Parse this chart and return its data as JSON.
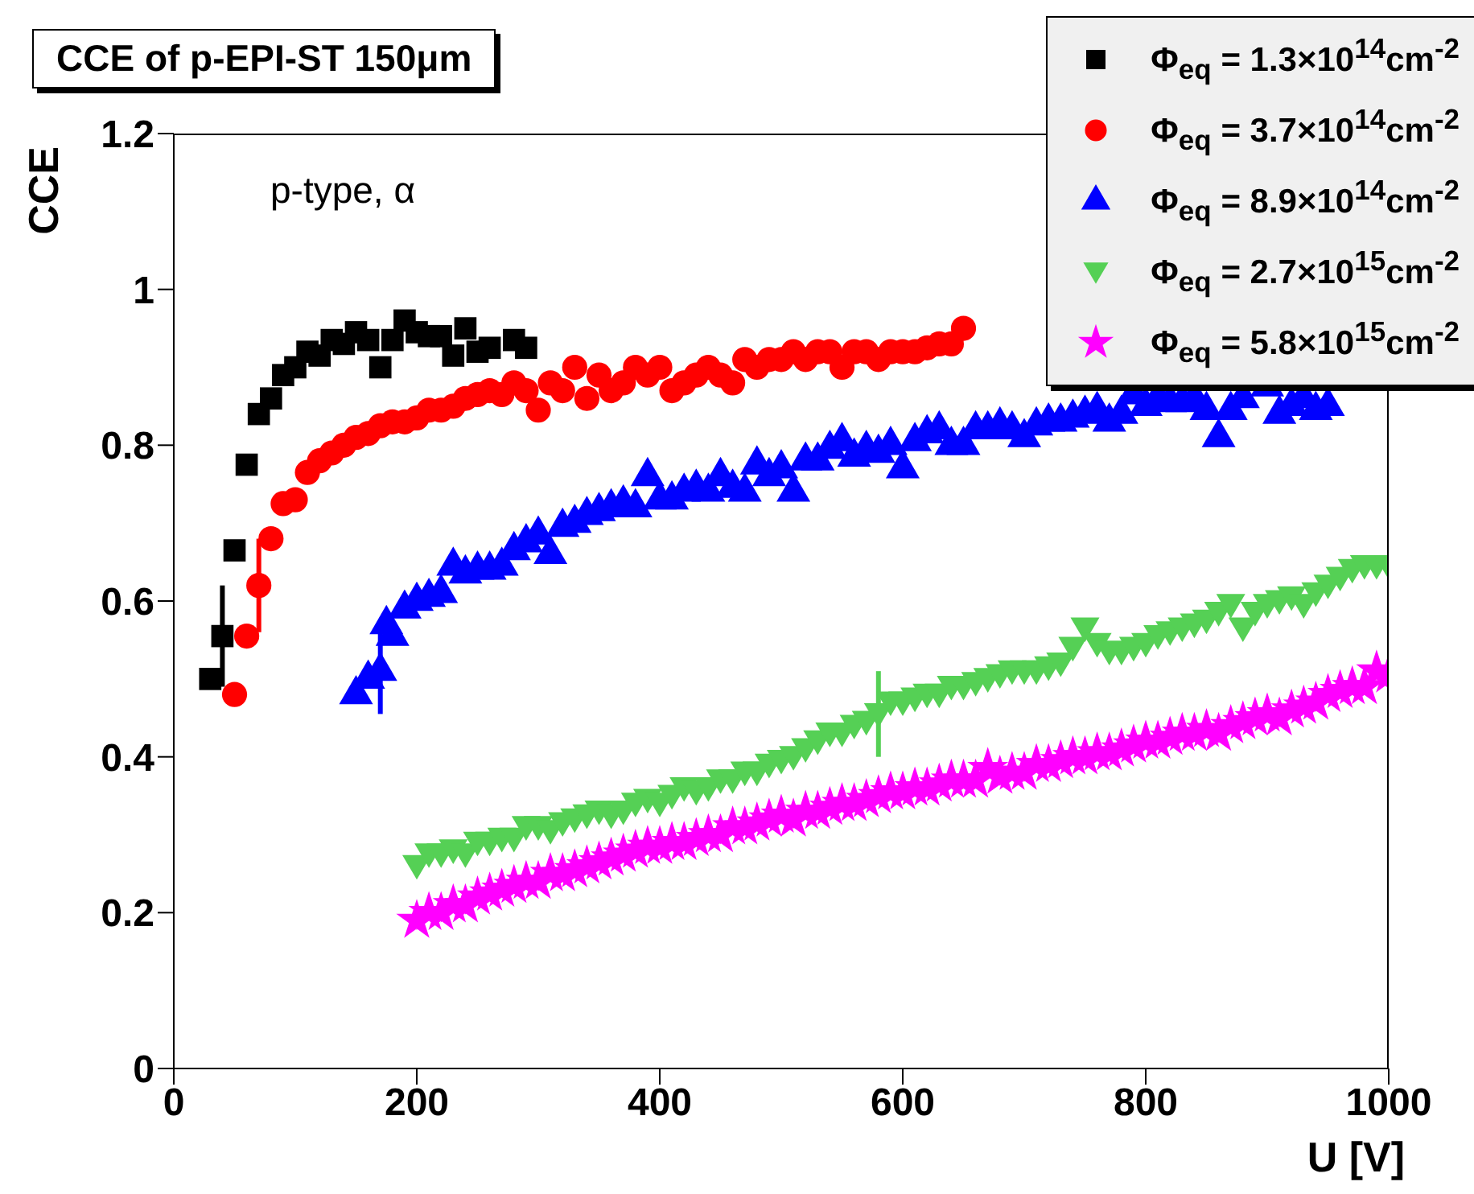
{
  "chart_data": {
    "type": "scatter",
    "title": "CCE of p-EPI-ST 150μm",
    "xlabel": "U [V]",
    "ylabel": "CCE",
    "annotations": [
      "p-type, α"
    ],
    "xlim": [
      0,
      1000
    ],
    "xticks": [
      0,
      200,
      400,
      600,
      800,
      1000
    ],
    "ylim": [
      0,
      1.2
    ],
    "yticks": [
      0,
      0.2,
      0.4,
      0.6,
      0.8,
      1,
      1.2
    ],
    "grid": false,
    "legend": "top right",
    "series": [
      {
        "name": "Φ$_{eq}$ = 1.3×10$^{14}$cm$^{-2}$",
        "color": "#000000",
        "marker": "square",
        "x": [
          30,
          40,
          50,
          60,
          70,
          80,
          90,
          100,
          110,
          120,
          130,
          140,
          150,
          160,
          170,
          180,
          190,
          200,
          210,
          220,
          230,
          240,
          250,
          260,
          280,
          290
        ],
        "values": [
          0.5,
          0.555,
          0.665,
          0.775,
          0.84,
          0.86,
          0.89,
          0.9,
          0.92,
          0.915,
          0.935,
          0.93,
          0.945,
          0.935,
          0.9,
          0.935,
          0.96,
          0.945,
          0.94,
          0.94,
          0.915,
          0.95,
          0.92,
          0.925,
          0.935,
          0.925
        ],
        "errors": [
          null,
          0.065,
          null,
          null,
          null,
          null,
          null,
          null,
          null,
          null,
          null,
          null,
          null,
          null,
          null,
          null,
          null,
          null,
          null,
          null,
          null,
          null,
          null,
          null,
          null,
          null
        ]
      },
      {
        "name": "Φ$_{eq}$ = 3.7×10$^{14}$cm$^{-2}$",
        "color": "#ff0000",
        "marker": "circle",
        "x": [
          50,
          60,
          70,
          80,
          90,
          100,
          110,
          120,
          130,
          140,
          150,
          160,
          170,
          180,
          190,
          200,
          210,
          220,
          230,
          240,
          250,
          260,
          270,
          280,
          290,
          300,
          310,
          320,
          330,
          340,
          350,
          360,
          370,
          380,
          390,
          400,
          410,
          420,
          430,
          440,
          450,
          460,
          470,
          480,
          490,
          500,
          510,
          520,
          530,
          540,
          550,
          560,
          570,
          580,
          590,
          600,
          610,
          620,
          630,
          640,
          650
        ],
        "values": [
          0.48,
          0.555,
          0.62,
          0.68,
          0.725,
          0.73,
          0.765,
          0.78,
          0.79,
          0.8,
          0.81,
          0.815,
          0.825,
          0.83,
          0.83,
          0.835,
          0.845,
          0.845,
          0.85,
          0.86,
          0.865,
          0.87,
          0.865,
          0.88,
          0.87,
          0.845,
          0.88,
          0.87,
          0.9,
          0.86,
          0.89,
          0.87,
          0.88,
          0.9,
          0.89,
          0.9,
          0.87,
          0.88,
          0.89,
          0.9,
          0.89,
          0.88,
          0.91,
          0.9,
          0.91,
          0.91,
          0.92,
          0.91,
          0.92,
          0.92,
          0.9,
          0.92,
          0.92,
          0.91,
          0.92,
          0.92,
          0.92,
          0.925,
          0.93,
          0.93,
          0.95
        ],
        "errors": [
          null,
          null,
          0.06,
          null,
          null,
          null,
          null,
          null,
          null,
          null,
          null,
          null,
          null,
          null,
          null,
          null,
          null,
          null,
          null,
          null,
          null,
          null,
          null,
          null,
          null,
          null,
          null,
          null,
          null,
          null,
          null,
          null,
          null,
          null,
          null,
          null,
          null,
          null,
          null,
          null,
          null,
          null,
          null,
          null,
          null,
          null,
          null,
          null,
          null,
          null,
          null,
          null,
          null,
          null,
          null,
          null,
          null,
          null,
          null,
          null,
          null
        ]
      },
      {
        "name": "Φ$_{eq}$ = 8.9×10$^{14}$cm$^{-2}$",
        "color": "#0000ff",
        "marker": "triangle",
        "x": [
          150,
          160,
          170,
          175,
          180,
          190,
          200,
          210,
          220,
          230,
          240,
          250,
          260,
          270,
          280,
          290,
          300,
          310,
          320,
          330,
          340,
          350,
          360,
          370,
          380,
          390,
          400,
          410,
          420,
          430,
          440,
          450,
          460,
          470,
          480,
          490,
          500,
          510,
          520,
          530,
          540,
          550,
          560,
          570,
          580,
          590,
          600,
          610,
          620,
          630,
          640,
          650,
          660,
          670,
          680,
          690,
          700,
          710,
          720,
          730,
          740,
          750,
          760,
          770,
          780,
          790,
          800,
          810,
          820,
          830,
          840,
          850,
          860,
          870,
          880,
          890,
          900,
          910,
          920,
          930,
          940,
          950
        ],
        "values": [
          0.48,
          0.5,
          0.51,
          0.57,
          0.555,
          0.59,
          0.6,
          0.605,
          0.61,
          0.645,
          0.635,
          0.64,
          0.64,
          0.645,
          0.665,
          0.675,
          0.685,
          0.66,
          0.695,
          0.7,
          0.71,
          0.715,
          0.72,
          0.725,
          0.72,
          0.76,
          0.73,
          0.73,
          0.74,
          0.745,
          0.74,
          0.76,
          0.745,
          0.74,
          0.775,
          0.76,
          0.77,
          0.74,
          0.78,
          0.78,
          0.795,
          0.805,
          0.785,
          0.795,
          0.79,
          0.8,
          0.77,
          0.805,
          0.815,
          0.82,
          0.8,
          0.8,
          0.82,
          0.82,
          0.825,
          0.82,
          0.81,
          0.825,
          0.83,
          0.83,
          0.835,
          0.84,
          0.845,
          0.83,
          0.84,
          0.865,
          0.85,
          0.86,
          0.855,
          0.855,
          0.86,
          0.845,
          0.81,
          0.845,
          0.86,
          null,
          0.875,
          0.84,
          0.85,
          0.86,
          0.845,
          0.85
        ],
        "errors": [
          null,
          null,
          0.055,
          null,
          null,
          null,
          null,
          null,
          null,
          null,
          null,
          null,
          null,
          null,
          null,
          null,
          null,
          null,
          null,
          null,
          null,
          null,
          null,
          null,
          null,
          null,
          null,
          null,
          null,
          null,
          null,
          null,
          null,
          null,
          null,
          null,
          null,
          null,
          null,
          null,
          null,
          null,
          null,
          null,
          null,
          null,
          null,
          null,
          null,
          null,
          null,
          null,
          null,
          null,
          null,
          null,
          null,
          null,
          null,
          null,
          null,
          null,
          null,
          null,
          null,
          null,
          null,
          null,
          null,
          null,
          null,
          null,
          null,
          null,
          null,
          null,
          null,
          null,
          null,
          null,
          null,
          null
        ]
      },
      {
        "name": "Φ$_{eq}$ = 2.7×10$^{15}$cm$^{-2}$",
        "color": "#55d055",
        "marker": "triangle_down",
        "x": [
          200,
          210,
          220,
          230,
          240,
          250,
          260,
          270,
          280,
          290,
          300,
          310,
          320,
          330,
          340,
          350,
          360,
          370,
          380,
          390,
          400,
          410,
          420,
          430,
          440,
          450,
          460,
          470,
          480,
          490,
          500,
          510,
          520,
          530,
          540,
          550,
          560,
          570,
          580,
          590,
          600,
          610,
          620,
          630,
          640,
          650,
          660,
          670,
          680,
          690,
          700,
          710,
          720,
          730,
          740,
          750,
          760,
          770,
          780,
          790,
          800,
          810,
          820,
          830,
          840,
          850,
          860,
          870,
          880,
          890,
          900,
          910,
          920,
          930,
          940,
          950,
          960,
          970,
          980,
          990,
          1000
        ],
        "values": [
          0.26,
          0.275,
          0.275,
          0.28,
          0.275,
          0.29,
          0.29,
          0.295,
          0.295,
          0.31,
          0.31,
          0.305,
          0.315,
          0.32,
          0.325,
          0.33,
          0.325,
          0.33,
          0.34,
          0.345,
          0.34,
          0.35,
          0.36,
          0.355,
          0.36,
          0.37,
          0.37,
          0.38,
          0.38,
          0.39,
          0.395,
          0.4,
          0.41,
          0.42,
          0.43,
          0.43,
          0.44,
          0.445,
          0.455,
          0.47,
          0.47,
          0.475,
          0.48,
          0.48,
          0.49,
          0.49,
          0.495,
          0.5,
          0.505,
          0.51,
          0.51,
          0.51,
          0.515,
          0.52,
          0.54,
          0.565,
          0.545,
          0.535,
          0.535,
          0.54,
          0.545,
          0.555,
          0.56,
          0.565,
          0.57,
          0.575,
          0.585,
          0.595,
          0.565,
          0.585,
          0.595,
          0.6,
          0.605,
          0.595,
          0.61,
          0.62,
          0.63,
          0.64,
          0.645,
          0.645,
          0.645
        ],
        "errors": [
          null,
          null,
          null,
          null,
          null,
          null,
          null,
          null,
          null,
          null,
          null,
          null,
          null,
          null,
          null,
          null,
          null,
          null,
          null,
          null,
          null,
          null,
          null,
          null,
          null,
          null,
          null,
          null,
          null,
          null,
          null,
          null,
          null,
          null,
          null,
          null,
          null,
          null,
          0.055,
          null,
          null,
          null,
          null,
          null,
          null,
          null,
          null,
          null,
          null,
          null,
          null,
          null,
          null,
          null,
          null,
          null,
          null,
          null,
          null,
          null,
          null,
          null,
          null,
          null,
          null,
          null,
          null,
          null,
          null,
          null,
          null,
          null,
          null,
          null,
          null,
          null,
          null,
          null,
          null,
          null,
          null
        ]
      },
      {
        "name": "Φ$_{eq}$ = 5.8×10$^{15}$cm$^{-2}$",
        "color": "#ff00ff",
        "marker": "star",
        "x": [
          200,
          210,
          220,
          230,
          240,
          250,
          260,
          270,
          280,
          290,
          300,
          310,
          320,
          330,
          340,
          350,
          360,
          370,
          380,
          390,
          400,
          410,
          420,
          430,
          440,
          450,
          460,
          470,
          480,
          490,
          500,
          510,
          520,
          530,
          540,
          550,
          560,
          570,
          580,
          590,
          600,
          610,
          620,
          630,
          640,
          650,
          660,
          670,
          680,
          690,
          700,
          710,
          720,
          730,
          740,
          750,
          760,
          770,
          780,
          790,
          800,
          810,
          820,
          830,
          840,
          850,
          860,
          870,
          880,
          890,
          900,
          910,
          920,
          930,
          940,
          950,
          960,
          970,
          980,
          990,
          1000
        ],
        "values": [
          0.19,
          0.2,
          0.2,
          0.21,
          0.21,
          0.22,
          0.225,
          0.23,
          0.235,
          0.24,
          0.24,
          0.25,
          0.25,
          0.255,
          0.26,
          0.265,
          0.27,
          0.275,
          0.28,
          0.285,
          0.285,
          0.29,
          0.29,
          0.295,
          0.3,
          0.3,
          0.31,
          0.31,
          0.315,
          0.32,
          0.325,
          0.32,
          0.33,
          0.33,
          0.335,
          0.34,
          0.34,
          0.345,
          0.35,
          0.355,
          0.355,
          0.36,
          0.36,
          0.365,
          0.37,
          0.37,
          0.37,
          0.385,
          0.375,
          0.38,
          0.38,
          0.39,
          0.39,
          0.395,
          0.4,
          0.4,
          0.405,
          0.405,
          0.41,
          0.415,
          0.42,
          0.42,
          0.425,
          0.43,
          0.43,
          0.435,
          0.43,
          0.44,
          0.445,
          0.45,
          0.455,
          0.45,
          0.46,
          0.465,
          0.47,
          0.48,
          0.485,
          0.49,
          0.49,
          0.51,
          0.505
        ]
      }
    ]
  }
}
